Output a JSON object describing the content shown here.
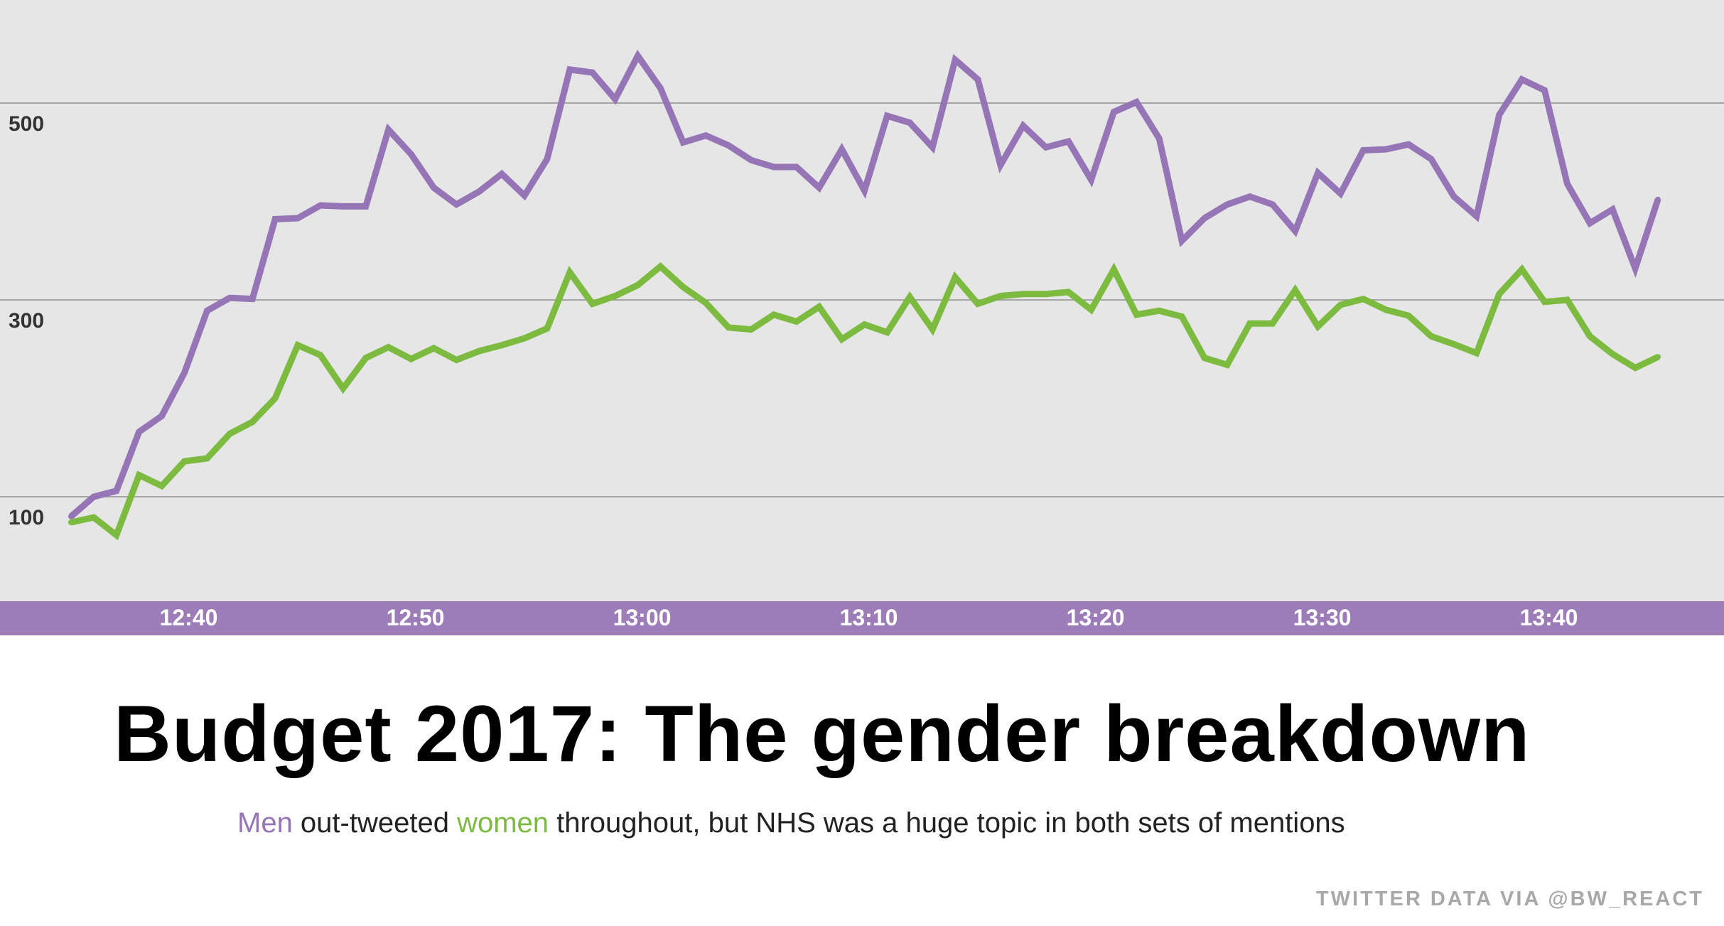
{
  "colors": {
    "background": "#e6e6e6",
    "axis_band": "#9c7db7",
    "men": "#9575b6",
    "women": "#7cbb3f",
    "gridline": "#8e8e8e"
  },
  "title": "Budget 2017: The gender breakdown",
  "subtitle": {
    "men_word": "Men",
    "middle": " out-tweeted ",
    "women_word": "women",
    "rest": " throughout, but NHS was a huge topic in both sets of mentions"
  },
  "credit": "TWITTER DATA VIA @BW_REACT",
  "chart_data": {
    "type": "line",
    "x_start": "12:35",
    "x_step_minutes": 1,
    "xticks": [
      "12:40",
      "12:50",
      "13:00",
      "13:10",
      "13:20",
      "13:30",
      "13:40"
    ],
    "yticks": [
      "100",
      "300",
      "500"
    ],
    "ylim": [
      -10,
      605
    ],
    "grid": true,
    "series": [
      {
        "name": "Men",
        "color": "#9575b6",
        "values": [
          80,
          100,
          106,
          166,
          182,
          226,
          289,
          302,
          301,
          382,
          383,
          396,
          395,
          395,
          473,
          448,
          414,
          397,
          410,
          428,
          406,
          443,
          534,
          531,
          504,
          548,
          515,
          460,
          467,
          457,
          442,
          435,
          435,
          414,
          453,
          411,
          487,
          480,
          455,
          544,
          524,
          437,
          477,
          455,
          461,
          422,
          491,
          501,
          464,
          360,
          383,
          397,
          405,
          397,
          370,
          429,
          408,
          452,
          453,
          458,
          443,
          405,
          385,
          488,
          524,
          513,
          418,
          378,
          392,
          332,
          402
        ],
        "x_minutes_from_start": [
          0,
          1,
          2,
          3,
          4,
          5,
          6,
          7,
          8,
          9,
          10,
          11,
          12,
          13,
          14,
          15,
          16,
          17,
          18,
          19,
          20,
          21,
          22,
          23,
          24,
          25,
          26,
          27,
          28,
          29,
          30,
          31,
          32,
          33,
          34,
          35,
          36,
          37,
          38,
          39,
          40,
          41,
          42,
          43,
          44,
          45,
          46,
          47,
          48,
          49,
          50,
          51,
          52,
          53,
          54,
          55,
          56,
          57,
          58,
          59,
          60,
          61,
          62,
          63,
          64,
          65,
          66,
          67,
          68,
          69,
          70
        ]
      },
      {
        "name": "Women",
        "color": "#7cbb3f",
        "values": [
          74,
          79,
          61,
          122,
          111,
          136,
          139,
          164,
          176,
          200,
          254,
          244,
          210,
          241,
          252,
          240,
          251,
          239,
          248,
          254,
          261,
          271,
          328,
          296,
          304,
          315,
          334,
          313,
          297,
          272,
          270,
          285,
          278,
          293,
          260,
          275,
          267,
          303,
          270,
          323,
          296,
          304,
          306,
          306,
          308,
          290,
          331,
          285,
          289,
          283,
          241,
          234,
          276,
          276,
          310,
          273,
          295,
          301,
          290,
          284,
          263,
          255,
          246,
          306,
          331,
          298,
          300,
          263,
          245,
          231,
          242
        ]
      }
    ]
  }
}
